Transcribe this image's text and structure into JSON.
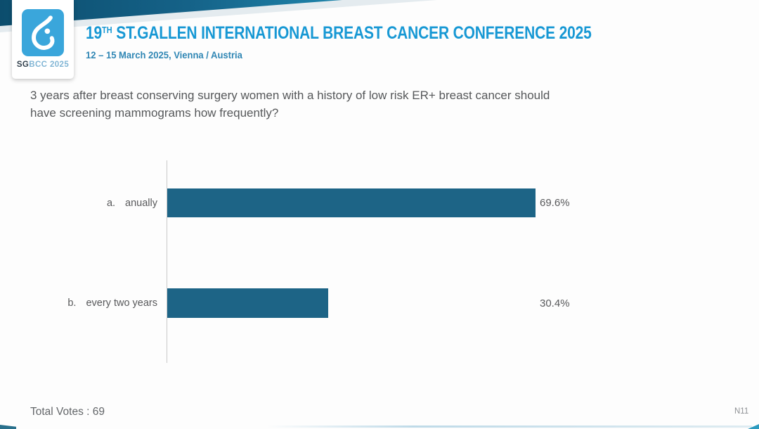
{
  "header": {
    "logo_caption_sg": "SG",
    "logo_caption_rest": "BCC 2025",
    "title_number": "19",
    "title_ordinal": "TH",
    "title_rest": " ST.GALLEN INTERNATIONAL BREAST CANCER CONFERENCE 2025",
    "subtitle": "12 – 15 March 2025, Vienna / Austria"
  },
  "question": {
    "line1": "3 years after breast conserving surgery women with a history of low risk ER+ breast cancer should",
    "line2": "have screening mammograms how frequently?"
  },
  "chart_data": {
    "type": "bar",
    "orientation": "horizontal",
    "title": "",
    "category_letters": [
      "a.",
      "b."
    ],
    "categories": [
      "anually",
      "every two years"
    ],
    "values": [
      69.6,
      30.4
    ],
    "value_labels": [
      "69.6%",
      "30.4%"
    ],
    "xlim": [
      0,
      100
    ],
    "grid": false,
    "legend": false,
    "bar_color": "#1d6486",
    "axis_color": "#c9c9c9"
  },
  "footer": {
    "total_votes": "Total Votes : 69",
    "slide_code": "N11"
  },
  "colors": {
    "banner_dark_teal": "#0c4d6d",
    "banner_mid_teal": "#156288",
    "logo_blue": "#3aa6db",
    "title_blue": "#1798d4",
    "subtitle_blue": "#2f86b4",
    "question_gray": "#56585a",
    "bar_teal": "#1d6486"
  }
}
